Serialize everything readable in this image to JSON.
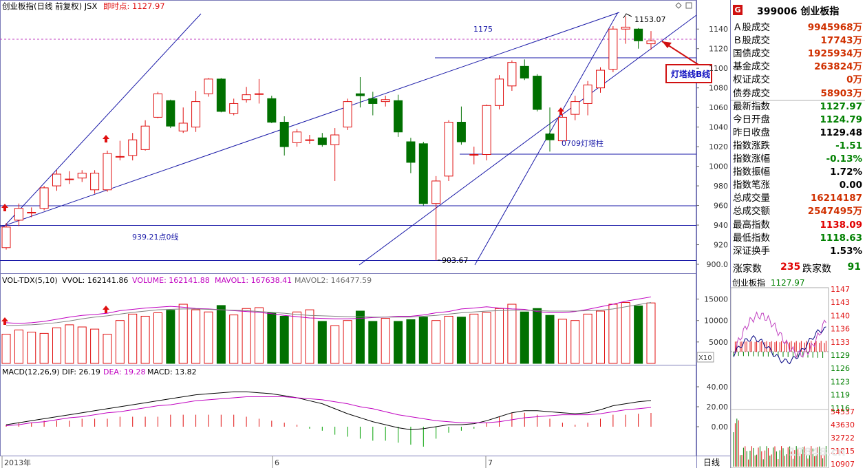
{
  "header": {
    "title": "创业板指(日线 前复权) JSX",
    "instant_label": "即时点: 1127.97"
  },
  "legends": {
    "vol": {
      "name": "VOL-TDX(5,10)",
      "vvol": "VVOL: 162141.86",
      "volume": "VOLUME: 162141.88",
      "mavol1": "MAVOL1: 167638.41",
      "mavol2": "MAVOL2: 146477.59"
    },
    "macd": {
      "name": "MACD(12,26,9)",
      "dif": "DIF: 26.19",
      "dea": "DEA: 19.28",
      "macd": "MACD: 13.82"
    }
  },
  "annotations": {
    "a1175": "1175",
    "high": "1153.07",
    "low": "903.67",
    "line939": "939.21点0线",
    "lighthouse_col": "0709灯塔柱",
    "callout": "灯塔线B线",
    "period": "日线",
    "x10": "X10"
  },
  "price_axis": [
    "1140",
    "1120",
    "1100",
    "1080",
    "1060",
    "1040",
    "1020",
    "1000",
    "980",
    "960",
    "940",
    "920",
    "900.0"
  ],
  "vol_axis": [
    "15000",
    "10000",
    "5000"
  ],
  "macd_axis": [
    "40.00",
    "20.00",
    "0.00"
  ],
  "date_ticks": [
    "2013年",
    "6",
    "7"
  ],
  "right_panel": {
    "code": "399006",
    "name": "创业板指",
    "icon": "G",
    "rows": [
      {
        "label": "Ａ股成交",
        "value": "9945968万",
        "color": "#d03000"
      },
      {
        "label": "Ｂ股成交",
        "value": "17743万",
        "color": "#d03000"
      },
      {
        "label": "国债成交",
        "value": "1925934万",
        "color": "#d03000"
      },
      {
        "label": "基金成交",
        "value": "263824万",
        "color": "#d03000"
      },
      {
        "label": "权证成交",
        "value": "0万",
        "color": "#d03000"
      },
      {
        "label": "债券成交",
        "value": "58903万",
        "color": "#d03000"
      },
      {
        "label": "最新指数",
        "value": "1127.97",
        "color": "#008000"
      },
      {
        "label": "今日开盘",
        "value": "1124.79",
        "color": "#008000"
      },
      {
        "label": "昨日收盘",
        "value": "1129.48",
        "color": "#000000"
      },
      {
        "label": "指数涨跌",
        "value": "-1.51",
        "color": "#008000"
      },
      {
        "label": "指数涨幅",
        "value": "-0.13%",
        "color": "#008000"
      },
      {
        "label": "指数振幅",
        "value": "1.72%",
        "color": "#000000"
      },
      {
        "label": "指数笔涨",
        "value": "0.00",
        "color": "#000000"
      },
      {
        "label": "总成交量",
        "value": "16214187",
        "color": "#d03000"
      },
      {
        "label": "总成交额",
        "value": "2547495万",
        "color": "#d03000"
      },
      {
        "label": "最高指数",
        "value": "1138.09",
        "color": "#e00000"
      },
      {
        "label": "最低指数",
        "value": "1118.63",
        "color": "#008000"
      },
      {
        "label": "深证换手",
        "value": "1.53%",
        "color": "#000000"
      }
    ],
    "up_label": "涨家数",
    "up_count": "235",
    "down_label": "跌家数",
    "down_count": "91",
    "mini_title": "创业板指",
    "mini_value": "1127.97",
    "mini_price_ticks": [
      "1147",
      "1143",
      "1140",
      "1136",
      "1133",
      "1129",
      "1126",
      "1123",
      "1119",
      "1116"
    ],
    "mini_vol_ticks": [
      "54537",
      "43630",
      "32722",
      "21815",
      "10907"
    ],
    "watermark": "17848.cn"
  },
  "chart_data": {
    "type": "candlestick",
    "title": "创业板指(日线 前复权) JSX",
    "ylim": [
      900,
      1150
    ],
    "candles": [
      {
        "o": 917,
        "c": 938,
        "h": 942,
        "l": 915
      },
      {
        "o": 945,
        "c": 957,
        "h": 962,
        "l": 939
      },
      {
        "o": 953,
        "c": 953,
        "h": 958,
        "l": 948
      },
      {
        "o": 957,
        "c": 978,
        "h": 980,
        "l": 955
      },
      {
        "o": 980,
        "c": 992,
        "h": 996,
        "l": 975
      },
      {
        "o": 987,
        "c": 987,
        "h": 995,
        "l": 982
      },
      {
        "o": 988,
        "c": 993,
        "h": 996,
        "l": 984
      },
      {
        "o": 976,
        "c": 993,
        "h": 996,
        "l": 972
      },
      {
        "o": 976,
        "c": 1013,
        "h": 1016,
        "l": 974
      },
      {
        "o": 1010,
        "c": 1010,
        "h": 1026,
        "l": 1006
      },
      {
        "o": 1011,
        "c": 1027,
        "h": 1034,
        "l": 1006
      },
      {
        "o": 1017,
        "c": 1041,
        "h": 1047,
        "l": 1016
      },
      {
        "o": 1050,
        "c": 1074,
        "h": 1076,
        "l": 1049
      },
      {
        "o": 1067,
        "c": 1041,
        "h": 1068,
        "l": 1039
      },
      {
        "o": 1036,
        "c": 1044,
        "h": 1060,
        "l": 1034
      },
      {
        "o": 1040,
        "c": 1066,
        "h": 1077,
        "l": 1035
      },
      {
        "o": 1074,
        "c": 1089,
        "h": 1090,
        "l": 1071
      },
      {
        "o": 1089,
        "c": 1056,
        "h": 1090,
        "l": 1055
      },
      {
        "o": 1054,
        "c": 1064,
        "h": 1069,
        "l": 1052
      },
      {
        "o": 1068,
        "c": 1073,
        "h": 1081,
        "l": 1065
      },
      {
        "o": 1074,
        "c": 1074,
        "h": 1089,
        "l": 1064
      },
      {
        "o": 1069,
        "c": 1045,
        "h": 1072,
        "l": 1044
      },
      {
        "o": 1045,
        "c": 1020,
        "h": 1051,
        "l": 1011
      },
      {
        "o": 1024,
        "c": 1035,
        "h": 1038,
        "l": 1020
      },
      {
        "o": 1027,
        "c": 1027,
        "h": 1032,
        "l": 1023
      },
      {
        "o": 1029,
        "c": 1022,
        "h": 1034,
        "l": 1020
      },
      {
        "o": 1022,
        "c": 1032,
        "h": 1039,
        "l": 985
      },
      {
        "o": 1040,
        "c": 1066,
        "h": 1069,
        "l": 1037
      },
      {
        "o": 1074,
        "c": 1072,
        "h": 1091,
        "l": 1060
      },
      {
        "o": 1069,
        "c": 1064,
        "h": 1076,
        "l": 1052
      },
      {
        "o": 1066,
        "c": 1068,
        "h": 1072,
        "l": 1061
      },
      {
        "o": 1067,
        "c": 1035,
        "h": 1073,
        "l": 1030
      },
      {
        "o": 1025,
        "c": 1004,
        "h": 1029,
        "l": 993
      },
      {
        "o": 1023,
        "c": 962,
        "h": 1025,
        "l": 960
      },
      {
        "o": 962,
        "c": 985,
        "h": 990,
        "l": 904
      },
      {
        "o": 990,
        "c": 1045,
        "h": 1047,
        "l": 985
      },
      {
        "o": 1045,
        "c": 1025,
        "h": 1061,
        "l": 1022
      },
      {
        "o": 1012,
        "c": 1012,
        "h": 1020,
        "l": 1002
      },
      {
        "o": 1012,
        "c": 1062,
        "h": 1063,
        "l": 1006
      },
      {
        "o": 1062,
        "c": 1089,
        "h": 1093,
        "l": 1058
      },
      {
        "o": 1082,
        "c": 1106,
        "h": 1108,
        "l": 1077
      },
      {
        "o": 1102,
        "c": 1090,
        "h": 1109,
        "l": 1088
      },
      {
        "o": 1092,
        "c": 1058,
        "h": 1094,
        "l": 1056
      },
      {
        "o": 1033,
        "c": 1027,
        "h": 1060,
        "l": 1015
      },
      {
        "o": 1026,
        "c": 1050,
        "h": 1053,
        "l": 1024
      },
      {
        "o": 1053,
        "c": 1066,
        "h": 1072,
        "l": 1047
      },
      {
        "o": 1064,
        "c": 1083,
        "h": 1087,
        "l": 1052
      },
      {
        "o": 1080,
        "c": 1098,
        "h": 1101,
        "l": 1075
      },
      {
        "o": 1099,
        "c": 1140,
        "h": 1143,
        "l": 1096
      },
      {
        "o": 1140,
        "c": 1142,
        "h": 1153,
        "l": 1125
      },
      {
        "o": 1140,
        "c": 1128,
        "h": 1141,
        "l": 1120
      },
      {
        "o": 1125,
        "c": 1128,
        "h": 1138,
        "l": 1119
      }
    ],
    "volume": [
      6800,
      7800,
      7300,
      7000,
      8300,
      9000,
      8500,
      8000,
      6800,
      10000,
      11500,
      11000,
      11800,
      12400,
      13800,
      12500,
      12000,
      13500,
      11300,
      12800,
      13000,
      11800,
      11000,
      12000,
      12500,
      9800,
      8800,
      10000,
      12200,
      9800,
      10500,
      9800,
      10200,
      10800,
      10000,
      11000,
      10800,
      11500,
      11900,
      12800,
      13800,
      12000,
      12800,
      11200,
      10300,
      10000,
      11500,
      12200,
      13800,
      14200,
      13400,
      14100
    ],
    "mavol1": [
      9500,
      9300,
      9500,
      9800,
      10300,
      10800,
      11200,
      11400,
      11700,
      12300,
      12600,
      12900,
      13100,
      13300,
      13100,
      12800,
      12700,
      12500,
      12300,
      12100,
      11900,
      11600,
      11200,
      10900,
      10600,
      10500,
      10400,
      10400,
      10500,
      10700,
      10800,
      11000,
      11000,
      11300,
      11800,
      12100,
      12700,
      12900,
      13200,
      12900,
      12700,
      12600,
      12100,
      11800,
      11800,
      12100,
      12600,
      13200,
      13800,
      14500,
      15000,
      15500
    ],
    "mavol2": [
      8800,
      8900,
      9000,
      9200,
      9500,
      9900,
      10400,
      10800,
      11100,
      11500,
      11900,
      12200,
      12500,
      12600,
      12700,
      12700,
      12600,
      12500,
      12400,
      12300,
      12100,
      11900,
      11700,
      11400,
      11200,
      11100,
      11000,
      10900,
      10900,
      10800,
      10800,
      10800,
      10800,
      11000,
      11200,
      11500,
      11800,
      12000,
      12200,
      12300,
      12400,
      12400,
      12300,
      12200,
      12200,
      12200,
      12300,
      12400,
      12700,
      13200,
      13700,
      14200
    ],
    "dif": [
      2,
      4,
      6,
      8,
      10,
      12,
      14,
      16,
      18,
      20,
      22,
      24,
      26,
      28,
      30,
      32,
      33,
      34,
      35,
      35,
      34,
      33,
      31,
      29,
      26,
      23,
      18,
      13,
      9,
      5,
      2,
      -1,
      -3,
      -2,
      0,
      2,
      2,
      3,
      6,
      10,
      14,
      16,
      16,
      15,
      14,
      13,
      14,
      17,
      21,
      23,
      25,
      26.19
    ],
    "dea": [
      1,
      2,
      4,
      5,
      7,
      9,
      10,
      12,
      14,
      15,
      17,
      19,
      21,
      22,
      24,
      26,
      27,
      28,
      29,
      30,
      30,
      30,
      30,
      29,
      28,
      27,
      25,
      23,
      20,
      18,
      15,
      12,
      10,
      8,
      6,
      5,
      4,
      4,
      4,
      5,
      7,
      9,
      10,
      11,
      12,
      12,
      12,
      13,
      15,
      17,
      18,
      19.28
    ],
    "macd_hist": [
      2,
      4,
      4,
      6,
      6,
      6,
      8,
      8,
      8,
      10,
      10,
      10,
      10,
      12,
      12,
      12,
      12,
      12,
      12,
      10,
      8,
      6,
      4,
      2,
      -2,
      -4,
      -8,
      -10,
      -12,
      -14,
      -14,
      -16,
      -18,
      -20,
      -12,
      -6,
      -4,
      -2,
      4,
      10,
      14,
      14,
      12,
      8,
      4,
      2,
      4,
      8,
      12,
      12,
      13,
      13.82
    ]
  }
}
